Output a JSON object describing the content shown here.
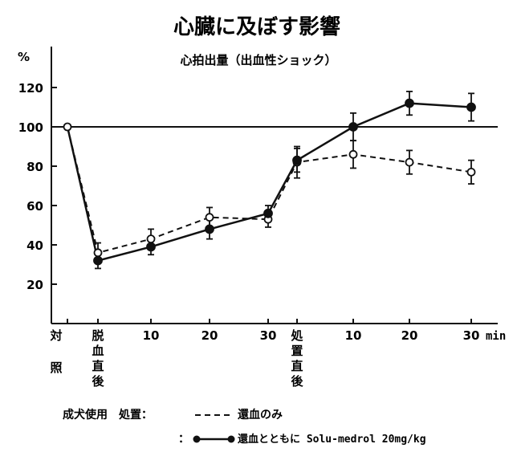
{
  "chart_data": {
    "type": "line",
    "title": "心臓に及ぼす影響",
    "subtitle": "心拍出量（出血性ショック）",
    "ylabel": "%",
    "xlabel": "min",
    "ylim": [
      0,
      130
    ],
    "yticks": [
      20,
      40,
      60,
      80,
      100,
      120
    ],
    "reference_line": 100,
    "grid": false,
    "control_label": "対照",
    "categories": [
      "対照",
      "脱血直後",
      "10",
      "20",
      "30",
      "処置直後",
      "10",
      "20",
      "30"
    ],
    "series": [
      {
        "name": "還血のみ",
        "style": "dashed",
        "marker": "open",
        "values": [
          100,
          36,
          43,
          54,
          53,
          82,
          86,
          82,
          77
        ],
        "errors": [
          null,
          5,
          5,
          5,
          4,
          8,
          7,
          6,
          6
        ]
      },
      {
        "name": "還血とともに Solu-medrol 20mg/kg",
        "style": "solid",
        "marker": "filled",
        "values": [
          100,
          32,
          39,
          48,
          56,
          83,
          100,
          112,
          110
        ],
        "errors": [
          null,
          4,
          4,
          5,
          4,
          6,
          7,
          6,
          7
        ]
      }
    ]
  },
  "legend": {
    "prefix": "成犬使用　処置：",
    "colon": "：",
    "entries": [
      "還血のみ",
      "還血とともに Solu-medrol 20mg/kg"
    ]
  }
}
